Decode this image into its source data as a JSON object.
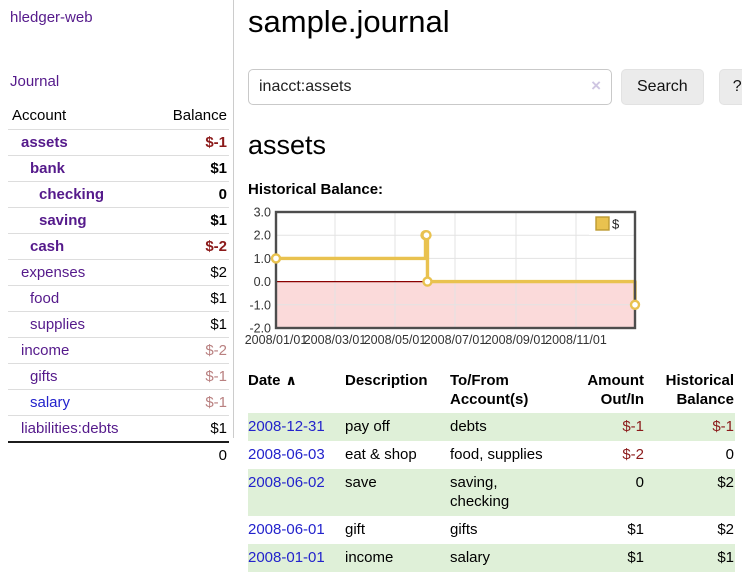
{
  "app": {
    "title": "hledger-web"
  },
  "sidebar": {
    "nav": {
      "journal_label": "Journal"
    },
    "accounts_table": {
      "headers": {
        "account": "Account",
        "balance": "Balance"
      },
      "rows": [
        {
          "name": "assets",
          "depth": 1,
          "bold": true,
          "balance": "$-1",
          "balance_tone": "negative-strong"
        },
        {
          "name": "bank",
          "depth": 2,
          "bold": true,
          "balance": "$1",
          "balance_tone": "normal"
        },
        {
          "name": "checking",
          "depth": 3,
          "bold": true,
          "balance": "0",
          "balance_tone": "normal"
        },
        {
          "name": "saving",
          "depth": 3,
          "bold": true,
          "balance": "$1",
          "balance_tone": "normal"
        },
        {
          "name": "cash",
          "depth": 2,
          "bold": true,
          "balance": "$-2",
          "balance_tone": "negative-strong"
        },
        {
          "name": "expenses",
          "depth": 1,
          "bold": false,
          "balance": "$2",
          "balance_tone": "normal"
        },
        {
          "name": "food",
          "depth": 2,
          "bold": false,
          "balance": "$1",
          "balance_tone": "normal"
        },
        {
          "name": "supplies",
          "depth": 2,
          "bold": false,
          "balance": "$1",
          "balance_tone": "normal"
        },
        {
          "name": "income",
          "depth": 1,
          "bold": false,
          "balance": "$-2",
          "balance_tone": "negative-soft"
        },
        {
          "name": "gifts",
          "depth": 2,
          "bold": false,
          "balance": "$-1",
          "balance_tone": "negative-soft"
        },
        {
          "name": "salary",
          "depth": 2,
          "bold": false,
          "balance": "$-1",
          "balance_tone": "negative-soft",
          "link_style": "unvisited"
        },
        {
          "name": "liabilities:debts",
          "depth": 1,
          "bold": false,
          "balance": "$1",
          "balance_tone": "normal"
        }
      ],
      "total": "0"
    }
  },
  "header": {
    "title": "sample.journal"
  },
  "search": {
    "value": "inacct:assets",
    "button_label": "Search",
    "help_label": "?"
  },
  "icons": {
    "clear": "×",
    "sort_ascending": "∧"
  },
  "account_page": {
    "title": "assets",
    "chart_label": "Historical Balance:"
  },
  "chart_data": {
    "type": "line",
    "title": "Historical Balance",
    "step": true,
    "x": [
      "2008-01-01",
      "2008-06-01",
      "2008-06-02",
      "2008-06-03",
      "2008-12-31"
    ],
    "series": [
      {
        "name": "$",
        "values": [
          1,
          2,
          2,
          0,
          -1
        ]
      }
    ],
    "x_range": [
      "2008-01-01",
      "2008-12-31"
    ],
    "ylim": [
      -2,
      3
    ],
    "yticks": [
      3.0,
      2.0,
      1.0,
      0.0,
      -1.0,
      -2.0
    ],
    "xticks": [
      "2008/01/01",
      "2008/03/01",
      "2008/05/01",
      "2008/07/01",
      "2008/09/01",
      "2008/11/01"
    ],
    "grid": true,
    "legend": {
      "label": "$",
      "position": "top-right"
    },
    "line_color": "#e9c24f",
    "negative_region_fill": "#fbdada",
    "zero_line_color": "#8b0000"
  },
  "transactions": {
    "headers": [
      "Date",
      "Description",
      "To/From Account(s)",
      "Amount Out/In",
      "Historical Balance"
    ],
    "rows": [
      {
        "date": "2008-12-31",
        "description": "pay off",
        "accounts": "debts",
        "amount": "$-1",
        "amount_negative": true,
        "balance": "$-1",
        "balance_negative": true
      },
      {
        "date": "2008-06-03",
        "description": "eat & shop",
        "accounts": "food, supplies",
        "amount": "$-2",
        "amount_negative": true,
        "balance": "0",
        "balance_negative": false
      },
      {
        "date": "2008-06-02",
        "description": "save",
        "accounts": "saving, checking",
        "amount": "0",
        "amount_negative": false,
        "balance": "$2",
        "balance_negative": false
      },
      {
        "date": "2008-06-01",
        "description": "gift",
        "accounts": "gifts",
        "amount": "$1",
        "amount_negative": false,
        "balance": "$2",
        "balance_negative": false
      },
      {
        "date": "2008-01-01",
        "description": "income",
        "accounts": "salary",
        "amount": "$1",
        "amount_negative": false,
        "balance": "$1",
        "balance_negative": false
      }
    ]
  },
  "colors": {
    "link_purple": "#551a8b",
    "link_blue": "#2323cc",
    "negative_strong": "#8b1a1a",
    "negative_soft": "#b98080",
    "row_stripe_green": "#dff0d8",
    "chart_line_gold": "#e9c24f",
    "chart_negative_fill": "#fbdada",
    "chart_zero_line": "#8b0000",
    "chart_border": "#4d4d4d"
  }
}
